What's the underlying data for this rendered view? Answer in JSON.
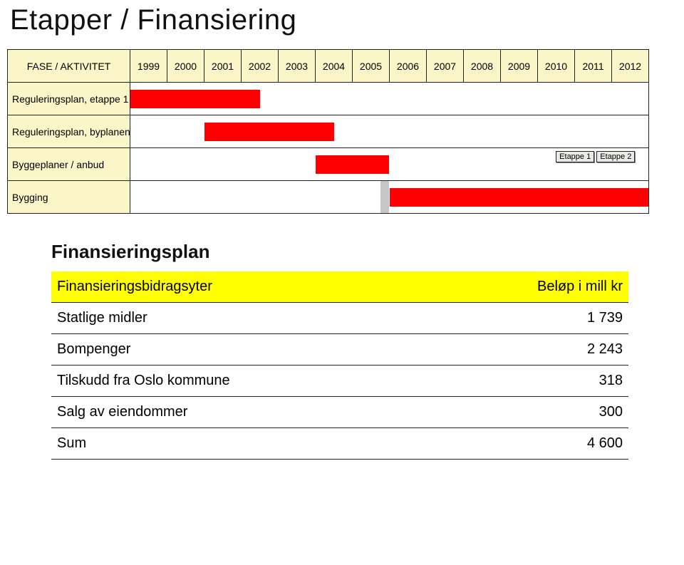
{
  "title": "Etapper / Finansiering",
  "gantt": {
    "header_label": "FASE / AKTIVITET",
    "years": [
      "1999",
      "2000",
      "2001",
      "2002",
      "2003",
      "2004",
      "2005",
      "2006",
      "2007",
      "2008",
      "2009",
      "2010",
      "2011",
      "2012"
    ],
    "year_count": 14,
    "row_labels": [
      "Reguleringsplan, etappe 1",
      "Reguleringsplan, byplanen",
      "Byggeplaner / anbud",
      "Bygging"
    ],
    "bars": {
      "row0": {
        "start_year_frac": 0.0,
        "end_year_frac": 3.5,
        "color": "#ff0000"
      },
      "row1": {
        "start_year_frac": 2.0,
        "end_year_frac": 5.5,
        "color": "#ff0000"
      },
      "row2": {
        "start_year_frac": 5.0,
        "end_year_frac": 7.0,
        "color": "#ff0000"
      },
      "row3": {
        "start_year_frac": 7.0,
        "end_year_frac": 14.0,
        "color": "#ff0000"
      }
    },
    "grey_stub": {
      "row": 3,
      "start_year_frac": 6.75,
      "end_year_frac": 7.0,
      "color": "#c6c6c6"
    },
    "etappe_labels": {
      "e1": {
        "text": "Etappe 1",
        "year_frac": 11.5,
        "row": 2
      },
      "e2": {
        "text": "Etappe 2",
        "year_frac": 12.6,
        "row": 2
      }
    },
    "markers": {
      "m1": {
        "year_frac": 11.85,
        "row": 3,
        "color": "#ff0000"
      },
      "m2": {
        "year_frac": 13.85,
        "row": 3,
        "color": "#ff0000"
      }
    },
    "colors": {
      "cell_bg": "#faf6c7",
      "bar": "#ff0000",
      "border": "#222222"
    }
  },
  "finance": {
    "title": "Finansieringsplan",
    "header": {
      "left": "Finansieringsbidragsyter",
      "right": "Beløp i mill kr"
    },
    "rows": [
      {
        "label": "Statlige midler",
        "value": "1 739"
      },
      {
        "label": "Bompenger",
        "value": "2 243"
      },
      {
        "label": "Tilskudd fra Oslo kommune",
        "value": "318"
      },
      {
        "label": "Salg av eiendommer",
        "value": "300"
      },
      {
        "label": "Sum",
        "value": "4 600"
      }
    ],
    "header_bg": "#ffff00"
  }
}
